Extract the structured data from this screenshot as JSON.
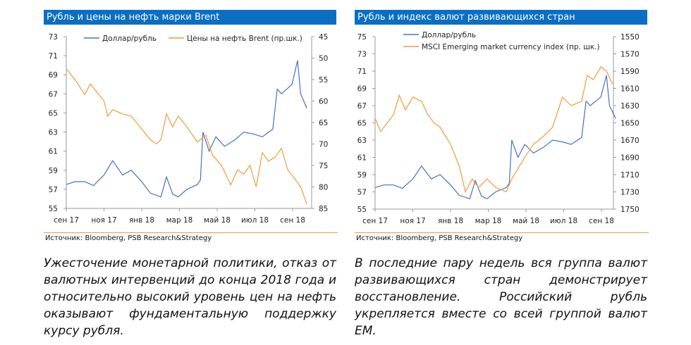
{
  "chart_data": [
    {
      "type": "line",
      "title": "Рубль и цены на нефть марки Brent",
      "source": "Источник: Bloomberg, PSB Research&Strategy",
      "x_ticks": [
        "сен 17",
        "ноя 17",
        "янв 18",
        "мар 18",
        "май 18",
        "июл 18",
        "сен 18"
      ],
      "ylim": [
        55,
        73
      ],
      "y_ticks": [
        "73",
        "71",
        "69",
        "67",
        "65",
        "63",
        "61",
        "59",
        "57",
        "55"
      ],
      "y2lim": [
        45,
        85
      ],
      "y2_inverted": true,
      "y2_ticks": [
        "45",
        "50",
        "55",
        "60",
        "65",
        "70",
        "75",
        "80",
        "85"
      ],
      "legend_placement": "top",
      "grid": false,
      "series": [
        {
          "name": "Доллар/рубль",
          "axis": "left",
          "color": "#4472c4",
          "x": [
            "2017-09-01",
            "2017-09-15",
            "2017-10-01",
            "2017-10-15",
            "2017-11-01",
            "2017-11-15",
            "2017-12-01",
            "2017-12-15",
            "2018-01-01",
            "2018-01-15",
            "2018-02-01",
            "2018-02-10",
            "2018-02-20",
            "2018-03-01",
            "2018-03-15",
            "2018-04-01",
            "2018-04-06",
            "2018-04-10",
            "2018-04-20",
            "2018-05-01",
            "2018-05-15",
            "2018-06-01",
            "2018-06-15",
            "2018-07-01",
            "2018-07-15",
            "2018-08-01",
            "2018-08-08",
            "2018-08-15",
            "2018-09-01",
            "2018-09-10",
            "2018-09-15",
            "2018-09-25"
          ],
          "values": [
            57.5,
            57.8,
            57.8,
            57.4,
            58.5,
            60.0,
            58.5,
            59.0,
            57.8,
            56.6,
            56.2,
            58.3,
            56.5,
            56.2,
            57.0,
            57.5,
            58.0,
            63.0,
            61.0,
            62.5,
            61.5,
            62.2,
            63.0,
            62.8,
            62.5,
            63.3,
            67.5,
            67.0,
            68.0,
            70.5,
            67.0,
            65.5
          ]
        },
        {
          "name": "Цены на нефть Brent (пр.шк.)",
          "axis": "right",
          "color": "#f39a3a",
          "x": [
            "2017-09-01",
            "2017-09-15",
            "2017-10-01",
            "2017-10-10",
            "2017-11-01",
            "2017-11-07",
            "2017-11-15",
            "2017-12-01",
            "2017-12-15",
            "2018-01-01",
            "2018-01-15",
            "2018-01-25",
            "2018-02-01",
            "2018-02-10",
            "2018-02-20",
            "2018-03-01",
            "2018-03-15",
            "2018-04-01",
            "2018-04-15",
            "2018-04-25",
            "2018-05-10",
            "2018-05-25",
            "2018-06-05",
            "2018-06-15",
            "2018-06-25",
            "2018-07-05",
            "2018-07-15",
            "2018-07-25",
            "2018-08-05",
            "2018-08-15",
            "2018-08-25",
            "2018-09-05",
            "2018-09-15",
            "2018-09-25"
          ],
          "values": [
            52.5,
            55,
            58.5,
            56,
            60,
            63.5,
            62,
            63,
            63.5,
            66.5,
            69,
            70,
            69,
            63,
            66,
            63.5,
            66,
            69.5,
            68,
            72.5,
            75,
            79.5,
            76,
            77,
            75,
            80,
            72,
            74,
            73,
            71,
            76,
            78,
            80,
            84
          ]
        }
      ]
    },
    {
      "type": "line",
      "title": "Рубль и индекс валют развивающихся стран",
      "source": "Источник: Bloomberg, PSB Research&Strategy",
      "x_ticks": [
        "сен 17",
        "ноя 17",
        "янв 18",
        "мар 18",
        "май 18",
        "июл 18",
        "сен 18"
      ],
      "ylim": [
        55,
        75
      ],
      "y_ticks": [
        "75",
        "73",
        "71",
        "69",
        "67",
        "65",
        "63",
        "61",
        "59",
        "57",
        "55"
      ],
      "y2lim": [
        1550,
        1750
      ],
      "y2_inverted": true,
      "y2_ticks": [
        "1550",
        "1570",
        "1590",
        "1610",
        "1630",
        "1650",
        "1670",
        "1690",
        "1710",
        "1730",
        "1750"
      ],
      "legend_placement": "top",
      "grid": false,
      "series": [
        {
          "name": "Доллар/рубль",
          "axis": "left",
          "color": "#4472c4",
          "x": [
            "2017-09-01",
            "2017-09-15",
            "2017-10-01",
            "2017-10-15",
            "2017-11-01",
            "2017-11-15",
            "2017-12-01",
            "2017-12-15",
            "2018-01-01",
            "2018-01-15",
            "2018-02-01",
            "2018-02-10",
            "2018-02-20",
            "2018-03-01",
            "2018-03-15",
            "2018-04-01",
            "2018-04-06",
            "2018-04-10",
            "2018-04-20",
            "2018-05-01",
            "2018-05-15",
            "2018-06-01",
            "2018-06-15",
            "2018-07-01",
            "2018-07-15",
            "2018-08-01",
            "2018-08-08",
            "2018-08-15",
            "2018-09-01",
            "2018-09-10",
            "2018-09-15",
            "2018-09-25"
          ],
          "values": [
            57.5,
            57.8,
            57.8,
            57.4,
            58.5,
            60.0,
            58.5,
            59.0,
            57.8,
            56.6,
            56.2,
            58.3,
            56.5,
            56.2,
            57.0,
            57.5,
            58.0,
            63.0,
            61.0,
            62.5,
            61.5,
            62.2,
            63.0,
            62.8,
            62.5,
            63.3,
            67.5,
            67.0,
            68.0,
            70.5,
            67.0,
            65.5
          ]
        },
        {
          "name": "MSCI Emerging market currency index (пр. шк.)",
          "axis": "right",
          "color": "#f39a3a",
          "x": [
            "2017-09-01",
            "2017-09-10",
            "2017-10-01",
            "2017-10-10",
            "2017-10-20",
            "2017-11-01",
            "2017-11-15",
            "2017-11-25",
            "2017-12-05",
            "2017-12-15",
            "2018-01-01",
            "2018-01-15",
            "2018-01-25",
            "2018-02-05",
            "2018-02-15",
            "2018-03-01",
            "2018-03-15",
            "2018-04-01",
            "2018-04-10",
            "2018-05-01",
            "2018-05-15",
            "2018-06-01",
            "2018-06-15",
            "2018-07-01",
            "2018-07-15",
            "2018-08-01",
            "2018-08-10",
            "2018-08-20",
            "2018-09-01",
            "2018-09-10",
            "2018-09-20"
          ],
          "values": [
            1645,
            1660,
            1640,
            1618,
            1635,
            1620,
            1625,
            1640,
            1650,
            1655,
            1675,
            1700,
            1730,
            1715,
            1725,
            1715,
            1725,
            1730,
            1715,
            1690,
            1675,
            1665,
            1655,
            1620,
            1630,
            1625,
            1595,
            1600,
            1585,
            1590,
            1605
          ]
        }
      ]
    }
  ],
  "paragraphs": [
    "Ужесточение монетарной политики, отказ от валютных интервенций до конца 2018 года и относительно высокий уровень цен на нефть оказывают фундаментальную поддержку курсу рубля.",
    "В последние пару недель вся группа валют развивающихся стран демонстрирует восстановление. Российский рубль укрепляется вместе со всей группой валют EM."
  ]
}
